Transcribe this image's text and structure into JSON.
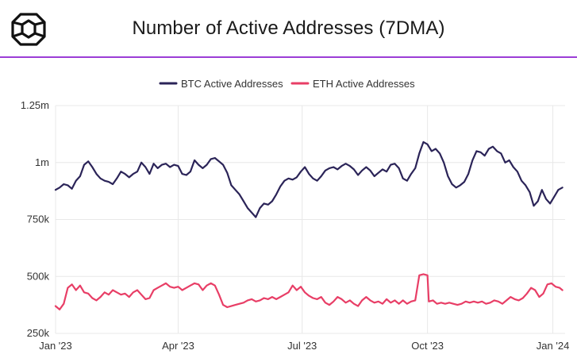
{
  "header": {
    "title": "Number of Active Addresses (7DMA)",
    "logo_icon": "cube-logo-icon"
  },
  "colors": {
    "accent": "#9b3ed6",
    "btc": "#2b2458",
    "eth": "#e83e66",
    "grid": "#e8e8e8"
  },
  "chart_data": {
    "type": "line",
    "title": "Number of Active Addresses (7DMA)",
    "legend_position": "top-center",
    "grid": true,
    "ylim": [
      250000,
      1250000
    ],
    "y_ticks": [
      {
        "value": 250000,
        "label": "250k"
      },
      {
        "value": 500000,
        "label": "500k"
      },
      {
        "value": 750000,
        "label": "750k"
      },
      {
        "value": 1000000,
        "label": "1m"
      },
      {
        "value": 1250000,
        "label": "1.25m"
      }
    ],
    "x_ticks": [
      {
        "date": "2023-01-01",
        "label": "Jan '23"
      },
      {
        "date": "2023-04-01",
        "label": "Apr '23"
      },
      {
        "date": "2023-07-01",
        "label": "Jul '23"
      },
      {
        "date": "2023-10-01",
        "label": "Oct '23"
      },
      {
        "date": "2024-01-01",
        "label": "Jan '24"
      }
    ],
    "xlim": [
      "2023-01-01",
      "2024-01-10"
    ],
    "series": [
      {
        "name": "BTC Active Addresses",
        "color": "#2b2458",
        "points": [
          [
            "2023-01-01",
            880000
          ],
          [
            "2023-01-04",
            890000
          ],
          [
            "2023-01-07",
            905000
          ],
          [
            "2023-01-10",
            900000
          ],
          [
            "2023-01-13",
            885000
          ],
          [
            "2023-01-16",
            920000
          ],
          [
            "2023-01-19",
            940000
          ],
          [
            "2023-01-22",
            990000
          ],
          [
            "2023-01-25",
            1005000
          ],
          [
            "2023-01-28",
            980000
          ],
          [
            "2023-01-31",
            950000
          ],
          [
            "2023-02-03",
            930000
          ],
          [
            "2023-02-06",
            920000
          ],
          [
            "2023-02-09",
            915000
          ],
          [
            "2023-02-12",
            905000
          ],
          [
            "2023-02-15",
            930000
          ],
          [
            "2023-02-18",
            960000
          ],
          [
            "2023-02-21",
            950000
          ],
          [
            "2023-02-24",
            935000
          ],
          [
            "2023-02-27",
            950000
          ],
          [
            "2023-03-02",
            960000
          ],
          [
            "2023-03-05",
            1000000
          ],
          [
            "2023-03-08",
            980000
          ],
          [
            "2023-03-11",
            950000
          ],
          [
            "2023-03-14",
            995000
          ],
          [
            "2023-03-17",
            975000
          ],
          [
            "2023-03-20",
            990000
          ],
          [
            "2023-03-23",
            995000
          ],
          [
            "2023-03-26",
            980000
          ],
          [
            "2023-03-29",
            990000
          ],
          [
            "2023-04-01",
            985000
          ],
          [
            "2023-04-04",
            950000
          ],
          [
            "2023-04-07",
            945000
          ],
          [
            "2023-04-10",
            960000
          ],
          [
            "2023-04-13",
            1010000
          ],
          [
            "2023-04-16",
            990000
          ],
          [
            "2023-04-19",
            975000
          ],
          [
            "2023-04-22",
            990000
          ],
          [
            "2023-04-25",
            1015000
          ],
          [
            "2023-04-28",
            1020000
          ],
          [
            "2023-05-01",
            1005000
          ],
          [
            "2023-05-04",
            990000
          ],
          [
            "2023-05-07",
            955000
          ],
          [
            "2023-05-10",
            900000
          ],
          [
            "2023-05-13",
            880000
          ],
          [
            "2023-05-16",
            860000
          ],
          [
            "2023-05-19",
            830000
          ],
          [
            "2023-05-22",
            800000
          ],
          [
            "2023-05-25",
            780000
          ],
          [
            "2023-05-28",
            760000
          ],
          [
            "2023-05-31",
            800000
          ],
          [
            "2023-06-03",
            820000
          ],
          [
            "2023-06-06",
            815000
          ],
          [
            "2023-06-09",
            830000
          ],
          [
            "2023-06-12",
            860000
          ],
          [
            "2023-06-15",
            895000
          ],
          [
            "2023-06-18",
            920000
          ],
          [
            "2023-06-21",
            930000
          ],
          [
            "2023-06-24",
            925000
          ],
          [
            "2023-06-27",
            935000
          ],
          [
            "2023-06-30",
            960000
          ],
          [
            "2023-07-03",
            980000
          ],
          [
            "2023-07-06",
            950000
          ],
          [
            "2023-07-09",
            930000
          ],
          [
            "2023-07-12",
            920000
          ],
          [
            "2023-07-15",
            940000
          ],
          [
            "2023-07-18",
            965000
          ],
          [
            "2023-07-21",
            975000
          ],
          [
            "2023-07-24",
            980000
          ],
          [
            "2023-07-27",
            970000
          ],
          [
            "2023-07-30",
            985000
          ],
          [
            "2023-08-02",
            995000
          ],
          [
            "2023-08-05",
            985000
          ],
          [
            "2023-08-08",
            970000
          ],
          [
            "2023-08-11",
            945000
          ],
          [
            "2023-08-14",
            965000
          ],
          [
            "2023-08-17",
            980000
          ],
          [
            "2023-08-20",
            965000
          ],
          [
            "2023-08-23",
            940000
          ],
          [
            "2023-08-26",
            955000
          ],
          [
            "2023-08-29",
            970000
          ],
          [
            "2023-09-01",
            960000
          ],
          [
            "2023-09-04",
            990000
          ],
          [
            "2023-09-07",
            995000
          ],
          [
            "2023-09-10",
            975000
          ],
          [
            "2023-09-13",
            930000
          ],
          [
            "2023-09-16",
            920000
          ],
          [
            "2023-09-19",
            950000
          ],
          [
            "2023-09-22",
            975000
          ],
          [
            "2023-09-25",
            1040000
          ],
          [
            "2023-09-28",
            1090000
          ],
          [
            "2023-10-01",
            1080000
          ],
          [
            "2023-10-04",
            1050000
          ],
          [
            "2023-10-07",
            1060000
          ],
          [
            "2023-10-10",
            1040000
          ],
          [
            "2023-10-13",
            1000000
          ],
          [
            "2023-10-16",
            940000
          ],
          [
            "2023-10-19",
            905000
          ],
          [
            "2023-10-22",
            890000
          ],
          [
            "2023-10-25",
            900000
          ],
          [
            "2023-10-28",
            915000
          ],
          [
            "2023-10-31",
            950000
          ],
          [
            "2023-11-03",
            1010000
          ],
          [
            "2023-11-06",
            1050000
          ],
          [
            "2023-11-09",
            1045000
          ],
          [
            "2023-11-12",
            1030000
          ],
          [
            "2023-11-15",
            1060000
          ],
          [
            "2023-11-18",
            1070000
          ],
          [
            "2023-11-21",
            1050000
          ],
          [
            "2023-11-24",
            1040000
          ],
          [
            "2023-11-27",
            1000000
          ],
          [
            "2023-11-30",
            1010000
          ],
          [
            "2023-12-03",
            980000
          ],
          [
            "2023-12-06",
            960000
          ],
          [
            "2023-12-09",
            920000
          ],
          [
            "2023-12-12",
            900000
          ],
          [
            "2023-12-15",
            870000
          ],
          [
            "2023-12-18",
            810000
          ],
          [
            "2023-12-21",
            830000
          ],
          [
            "2023-12-24",
            880000
          ],
          [
            "2023-12-27",
            840000
          ],
          [
            "2023-12-30",
            820000
          ],
          [
            "2024-01-02",
            850000
          ],
          [
            "2024-01-05",
            880000
          ],
          [
            "2024-01-08",
            890000
          ]
        ]
      },
      {
        "name": "ETH Active Addresses",
        "color": "#e83e66",
        "points": [
          [
            "2023-01-01",
            370000
          ],
          [
            "2023-01-04",
            355000
          ],
          [
            "2023-01-07",
            380000
          ],
          [
            "2023-01-10",
            450000
          ],
          [
            "2023-01-13",
            465000
          ],
          [
            "2023-01-16",
            440000
          ],
          [
            "2023-01-19",
            460000
          ],
          [
            "2023-01-22",
            430000
          ],
          [
            "2023-01-25",
            425000
          ],
          [
            "2023-01-28",
            405000
          ],
          [
            "2023-01-31",
            395000
          ],
          [
            "2023-02-03",
            410000
          ],
          [
            "2023-02-06",
            430000
          ],
          [
            "2023-02-09",
            420000
          ],
          [
            "2023-02-12",
            440000
          ],
          [
            "2023-02-15",
            430000
          ],
          [
            "2023-02-18",
            420000
          ],
          [
            "2023-02-21",
            425000
          ],
          [
            "2023-02-24",
            410000
          ],
          [
            "2023-02-27",
            430000
          ],
          [
            "2023-03-02",
            440000
          ],
          [
            "2023-03-05",
            420000
          ],
          [
            "2023-03-08",
            400000
          ],
          [
            "2023-03-11",
            405000
          ],
          [
            "2023-03-14",
            440000
          ],
          [
            "2023-03-17",
            450000
          ],
          [
            "2023-03-20",
            460000
          ],
          [
            "2023-03-23",
            470000
          ],
          [
            "2023-03-26",
            455000
          ],
          [
            "2023-03-29",
            450000
          ],
          [
            "2023-04-01",
            455000
          ],
          [
            "2023-04-04",
            440000
          ],
          [
            "2023-04-07",
            450000
          ],
          [
            "2023-04-10",
            460000
          ],
          [
            "2023-04-13",
            470000
          ],
          [
            "2023-04-16",
            465000
          ],
          [
            "2023-04-19",
            440000
          ],
          [
            "2023-04-22",
            460000
          ],
          [
            "2023-04-25",
            470000
          ],
          [
            "2023-04-28",
            460000
          ],
          [
            "2023-05-01",
            420000
          ],
          [
            "2023-05-04",
            375000
          ],
          [
            "2023-05-07",
            365000
          ],
          [
            "2023-05-10",
            370000
          ],
          [
            "2023-05-13",
            375000
          ],
          [
            "2023-05-16",
            380000
          ],
          [
            "2023-05-19",
            385000
          ],
          [
            "2023-05-22",
            395000
          ],
          [
            "2023-05-25",
            400000
          ],
          [
            "2023-05-28",
            390000
          ],
          [
            "2023-05-31",
            395000
          ],
          [
            "2023-06-03",
            405000
          ],
          [
            "2023-06-06",
            400000
          ],
          [
            "2023-06-09",
            410000
          ],
          [
            "2023-06-12",
            400000
          ],
          [
            "2023-06-15",
            410000
          ],
          [
            "2023-06-18",
            420000
          ],
          [
            "2023-06-21",
            430000
          ],
          [
            "2023-06-24",
            460000
          ],
          [
            "2023-06-27",
            440000
          ],
          [
            "2023-06-30",
            455000
          ],
          [
            "2023-07-03",
            430000
          ],
          [
            "2023-07-06",
            415000
          ],
          [
            "2023-07-09",
            405000
          ],
          [
            "2023-07-12",
            400000
          ],
          [
            "2023-07-15",
            410000
          ],
          [
            "2023-07-18",
            385000
          ],
          [
            "2023-07-21",
            375000
          ],
          [
            "2023-07-24",
            390000
          ],
          [
            "2023-07-27",
            410000
          ],
          [
            "2023-07-30",
            400000
          ],
          [
            "2023-08-02",
            385000
          ],
          [
            "2023-08-05",
            395000
          ],
          [
            "2023-08-08",
            380000
          ],
          [
            "2023-08-11",
            370000
          ],
          [
            "2023-08-14",
            395000
          ],
          [
            "2023-08-17",
            410000
          ],
          [
            "2023-08-20",
            395000
          ],
          [
            "2023-08-23",
            385000
          ],
          [
            "2023-08-26",
            390000
          ],
          [
            "2023-08-29",
            380000
          ],
          [
            "2023-09-01",
            400000
          ],
          [
            "2023-09-04",
            385000
          ],
          [
            "2023-09-07",
            395000
          ],
          [
            "2023-09-10",
            380000
          ],
          [
            "2023-09-13",
            395000
          ],
          [
            "2023-09-16",
            380000
          ],
          [
            "2023-09-19",
            390000
          ],
          [
            "2023-09-22",
            395000
          ],
          [
            "2023-09-25",
            505000
          ],
          [
            "2023-09-28",
            510000
          ],
          [
            "2023-10-01",
            505000
          ],
          [
            "2023-10-02",
            390000
          ],
          [
            "2023-10-05",
            395000
          ],
          [
            "2023-10-08",
            380000
          ],
          [
            "2023-10-11",
            385000
          ],
          [
            "2023-10-14",
            380000
          ],
          [
            "2023-10-17",
            385000
          ],
          [
            "2023-10-20",
            380000
          ],
          [
            "2023-10-23",
            375000
          ],
          [
            "2023-10-26",
            380000
          ],
          [
            "2023-10-29",
            390000
          ],
          [
            "2023-11-01",
            385000
          ],
          [
            "2023-11-04",
            390000
          ],
          [
            "2023-11-07",
            385000
          ],
          [
            "2023-11-10",
            390000
          ],
          [
            "2023-11-13",
            380000
          ],
          [
            "2023-11-16",
            385000
          ],
          [
            "2023-11-19",
            395000
          ],
          [
            "2023-11-22",
            390000
          ],
          [
            "2023-11-25",
            380000
          ],
          [
            "2023-11-28",
            395000
          ],
          [
            "2023-12-01",
            410000
          ],
          [
            "2023-12-04",
            400000
          ],
          [
            "2023-12-07",
            395000
          ],
          [
            "2023-12-10",
            405000
          ],
          [
            "2023-12-13",
            425000
          ],
          [
            "2023-12-16",
            450000
          ],
          [
            "2023-12-19",
            440000
          ],
          [
            "2023-12-22",
            410000
          ],
          [
            "2023-12-25",
            425000
          ],
          [
            "2023-12-28",
            465000
          ],
          [
            "2023-12-31",
            470000
          ],
          [
            "2024-01-03",
            455000
          ],
          [
            "2024-01-06",
            450000
          ],
          [
            "2024-01-08",
            440000
          ]
        ]
      }
    ]
  }
}
